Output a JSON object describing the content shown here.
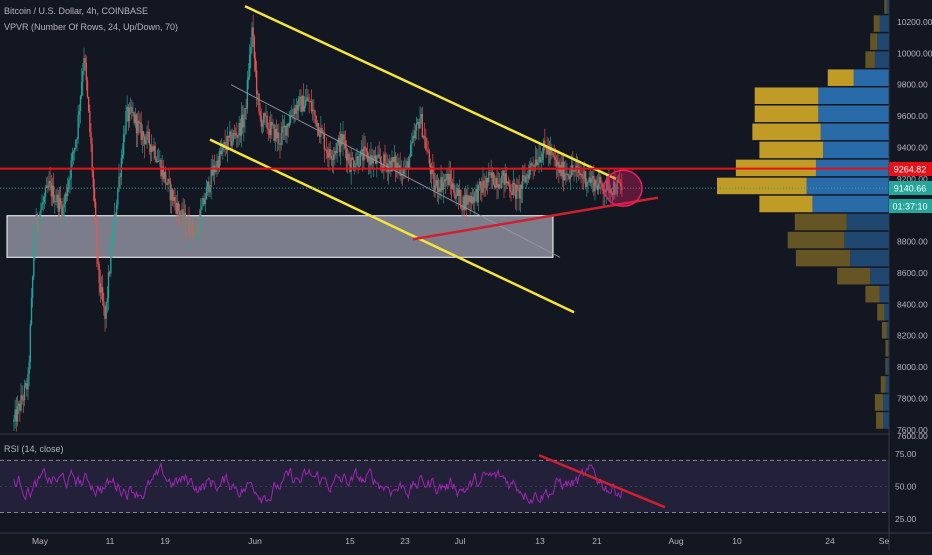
{
  "header": {
    "symbol_line": "Bitcoin / U.S. Dollar, 4h, COINBASE",
    "indicator_line": "VPVR (Number Of Rows, 24, Up/Down, 70)"
  },
  "rsi_panel": {
    "label": "RSI (14, close)"
  },
  "price_badges": {
    "resistance": {
      "value": "9264.82",
      "color": "#e8111a"
    },
    "last": {
      "value": "9140.66",
      "color": "#26a69a"
    },
    "countdown": {
      "value": "01:37:10",
      "color": "#26a69a"
    }
  },
  "colors": {
    "background": "#131722",
    "up_candle": "#26a69a",
    "down_candle": "#ef5350",
    "trendline_yellow": "#f5e53b",
    "trendline_red": "#e8111a",
    "rsi_line": "#9c27b0",
    "vpvr_up": "#2a6fb0",
    "vpvr_down": "#c9a227"
  },
  "chart_data": [
    {
      "type": "candlestick",
      "title": "Bitcoin / U.S. Dollar, 4h, COINBASE",
      "xlabel": "",
      "ylabel": "",
      "x_ticks": [
        "May",
        "11",
        "19",
        "Jun",
        "15",
        "23",
        "Jul",
        "13",
        "21",
        "Aug",
        "10",
        "24",
        "Se"
      ],
      "y_ticks": [
        "10200.00",
        "10000.00",
        "9800.00",
        "9600.00",
        "9400.00",
        "9200.00",
        "9000.00",
        "8800.00",
        "8600.00",
        "8400.00",
        "8200.00",
        "8000.00",
        "7800.00",
        "7600.00"
      ],
      "ylim": [
        7580,
        10340
      ],
      "x_range_days": [
        -2,
        125
      ],
      "grid": false,
      "price_path": [
        [
          0,
          7650
        ],
        [
          2,
          7900
        ],
        [
          3,
          8900
        ],
        [
          5,
          9150
        ],
        [
          7,
          9000
        ],
        [
          9,
          9500
        ],
        [
          10,
          10000
        ],
        [
          11,
          9400
        ],
        [
          12,
          8600
        ],
        [
          13,
          8300
        ],
        [
          14,
          8800
        ],
        [
          16,
          9600
        ],
        [
          17,
          9600
        ],
        [
          18,
          9500
        ],
        [
          20,
          9400
        ],
        [
          22,
          9150
        ],
        [
          24,
          8950
        ],
        [
          26,
          8850
        ],
        [
          28,
          9200
        ],
        [
          30,
          9400
        ],
        [
          32,
          9500
        ],
        [
          33,
          9600
        ],
        [
          34,
          10150
        ],
        [
          35,
          9600
        ],
        [
          36,
          9550
        ],
        [
          38,
          9450
        ],
        [
          40,
          9650
        ],
        [
          42,
          9700
        ],
        [
          43,
          9600
        ],
        [
          45,
          9350
        ],
        [
          47,
          9450
        ],
        [
          48,
          9300
        ],
        [
          50,
          9350
        ],
        [
          52,
          9300
        ],
        [
          54,
          9300
        ],
        [
          56,
          9250
        ],
        [
          58,
          9600
        ],
        [
          60,
          9150
        ],
        [
          62,
          9200
        ],
        [
          64,
          9050
        ],
        [
          66,
          9100
        ],
        [
          68,
          9200
        ],
        [
          70,
          9200
        ],
        [
          72,
          9100
        ],
        [
          74,
          9300
        ],
        [
          76,
          9400
        ],
        [
          78,
          9250
        ],
        [
          80,
          9250
        ],
        [
          82,
          9200
        ],
        [
          84,
          9150
        ],
        [
          86,
          9150
        ],
        [
          87,
          9140
        ]
      ],
      "annotations": {
        "resistance_level": 9264.82,
        "last_price": 9140.66,
        "support_box": {
          "x": [
            -1,
            77
          ],
          "y": [
            8700,
            8965
          ]
        },
        "channel_upper": [
          [
            33,
            10300
          ],
          [
            86,
            9200
          ]
        ],
        "channel_lower": [
          [
            28,
            9450
          ],
          [
            80,
            8350
          ]
        ],
        "thin_line": [
          [
            31,
            9800
          ],
          [
            78,
            8700
          ]
        ],
        "rising_support": [
          [
            57,
            8815
          ],
          [
            92,
            9080
          ]
        ],
        "circle_center": [
          87,
          9140
        ]
      }
    },
    {
      "type": "bar",
      "title": "VPVR (Number Of Rows, 24, Up/Down, 70)",
      "orientation": "horizontal",
      "categories": [
        10300,
        10185,
        10070,
        9955,
        9840,
        9725,
        9610,
        9495,
        9380,
        9265,
        9150,
        9035,
        8920,
        8805,
        8690,
        8575,
        8460,
        8345,
        8230,
        8115,
        8000,
        7885,
        7770,
        7655
      ],
      "series": [
        {
          "values": [
            2,
            8,
            10,
            12,
            30,
            60,
            60,
            58,
            56,
            62,
            70,
            65,
            36,
            38,
            33,
            16,
            8,
            4,
            2,
            1,
            2,
            3,
            5,
            5
          ]
        },
        {
          "values": [
            2,
            5,
            6,
            8,
            22,
            54,
            54,
            58,
            54,
            68,
            76,
            45,
            44,
            48,
            46,
            28,
            12,
            6,
            4,
            2,
            1,
            4,
            7,
            6
          ]
        }
      ]
    },
    {
      "type": "line",
      "title": "RSI (14, close)",
      "y_ticks": [
        "75.00",
        "50.00",
        "25.00"
      ],
      "ylim": [
        15,
        88
      ],
      "bands": [
        30,
        70
      ],
      "divergence_line": [
        [
          75,
          74
        ],
        [
          93,
          34
        ]
      ]
    }
  ]
}
